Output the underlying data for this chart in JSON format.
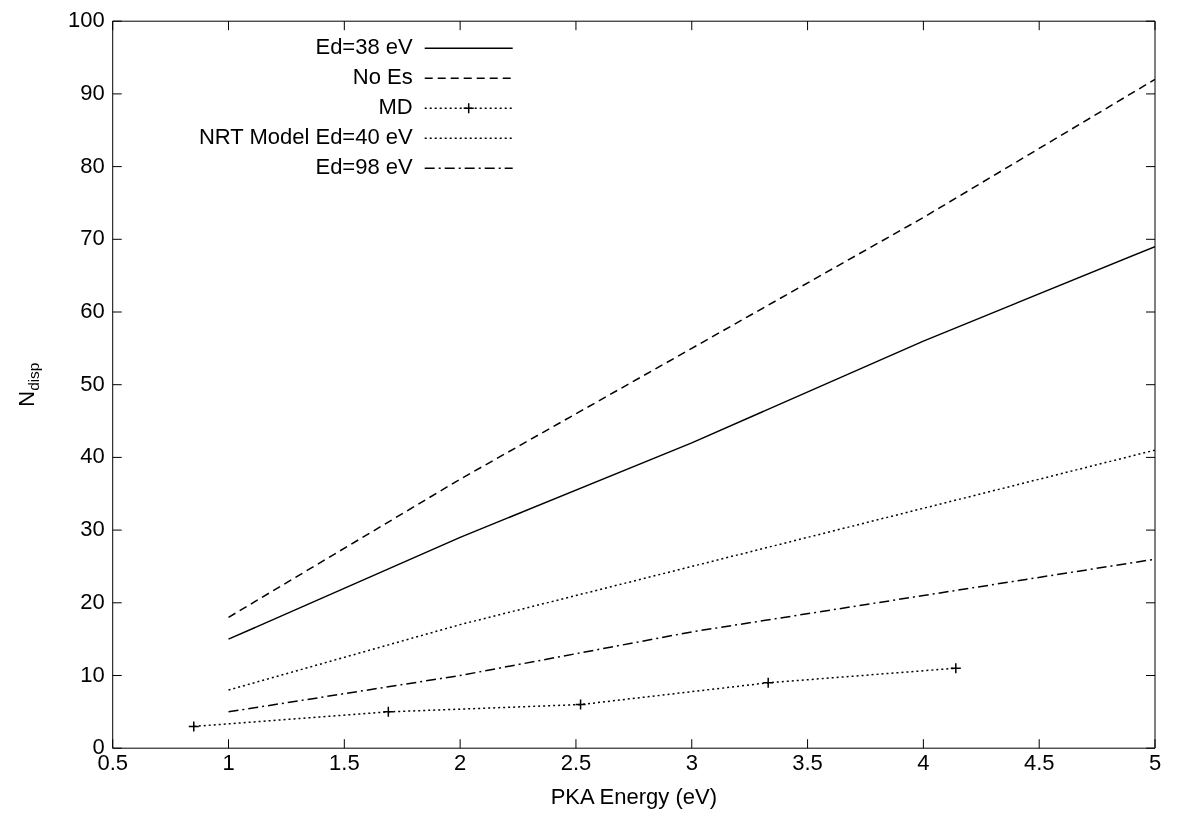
{
  "chart_data": {
    "type": "line",
    "xlabel": "PKA Energy (eV)",
    "ylabel": "N$_{disp}$",
    "xlim": [
      0.5,
      5
    ],
    "xticks": [
      0.5,
      1,
      1.5,
      2,
      2.5,
      3,
      3.5,
      4,
      4.5,
      5
    ],
    "ylim": [
      0,
      100
    ],
    "yticks": [
      0,
      10,
      20,
      30,
      40,
      50,
      60,
      70,
      80,
      90,
      100
    ],
    "grid": false,
    "legend": "top left",
    "marker": "none",
    "series": [
      {
        "name": "Ed=38 eV",
        "color": "#000000",
        "line_style": "solid",
        "x": [
          1,
          2,
          3,
          4,
          5
        ],
        "values": [
          15,
          29,
          42,
          56,
          69
        ]
      },
      {
        "name": "No Es",
        "color": "#000000",
        "line_style": "dashed",
        "x": [
          1,
          2,
          3,
          4,
          5
        ],
        "values": [
          18,
          37,
          55,
          73,
          92
        ]
      },
      {
        "name": "MD",
        "color": "#000000",
        "line_style": "dotted",
        "marker": "cross",
        "x": [
          0.85,
          1.69,
          2.52,
          3.33,
          4.14
        ],
        "values": [
          3,
          5,
          6,
          9,
          11
        ]
      },
      {
        "name": "NRT Model Ed=40 eV",
        "color": "#000000",
        "line_style": "dotted",
        "x": [
          1,
          2,
          3,
          4,
          5
        ],
        "values": [
          8,
          17,
          25,
          33,
          41
        ]
      },
      {
        "name": "Ed=98 eV",
        "color": "#000000",
        "line_style": "dashdot",
        "x": [
          1,
          2,
          3,
          4,
          5
        ],
        "values": [
          5,
          10,
          16,
          21,
          26
        ]
      }
    ]
  }
}
